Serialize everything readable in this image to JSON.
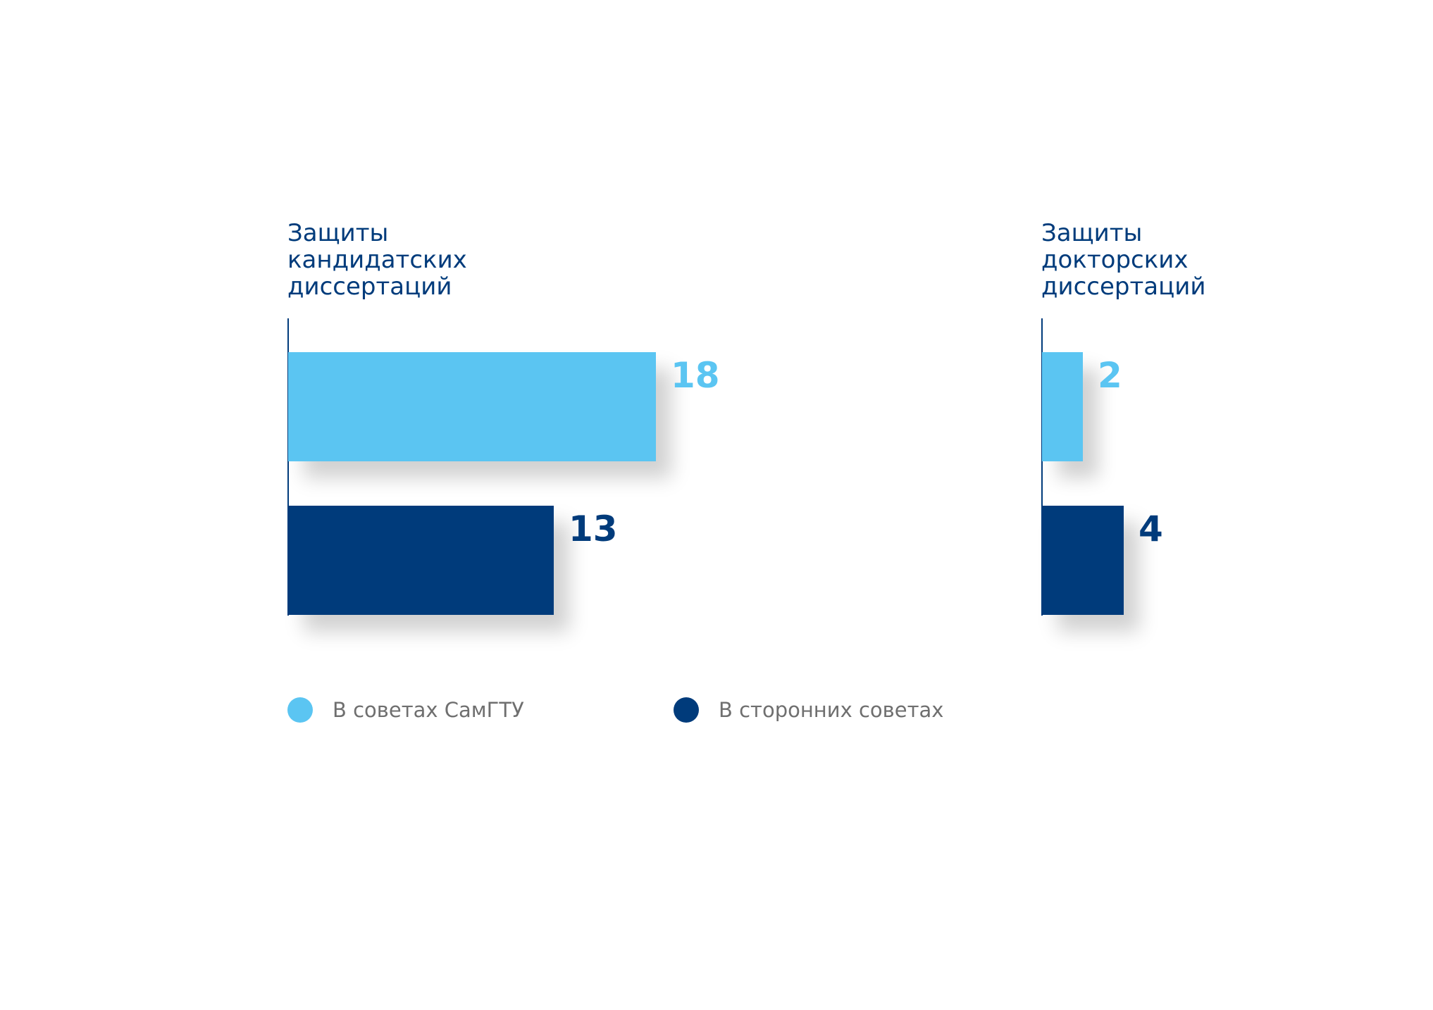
{
  "chart_data": {
    "type": "bar",
    "orientation": "horizontal",
    "grid": false,
    "legend_position": "bottom",
    "legend": [
      {
        "name": "В советах СамГТУ",
        "color": "#5bc5f2"
      },
      {
        "name": "В сторонних советах",
        "color": "#003b7b"
      }
    ],
    "panels": [
      {
        "title": "Защиты\nкандидатских\nдиссертаций",
        "series": [
          {
            "name": "В советах СамГТУ",
            "value": 18,
            "label": "18",
            "color": "#5bc5f2"
          },
          {
            "name": "В сторонних советах",
            "value": 13,
            "label": "13",
            "color": "#003b7b"
          }
        ]
      },
      {
        "title": "Защиты\nдокторских\nдиссертаций",
        "series": [
          {
            "name": "В советах СамГТУ",
            "value": 2,
            "label": "2",
            "color": "#5bc5f2"
          },
          {
            "name": "В сторонних советах",
            "value": 4,
            "label": "4",
            "color": "#003b7b"
          }
        ]
      }
    ]
  }
}
